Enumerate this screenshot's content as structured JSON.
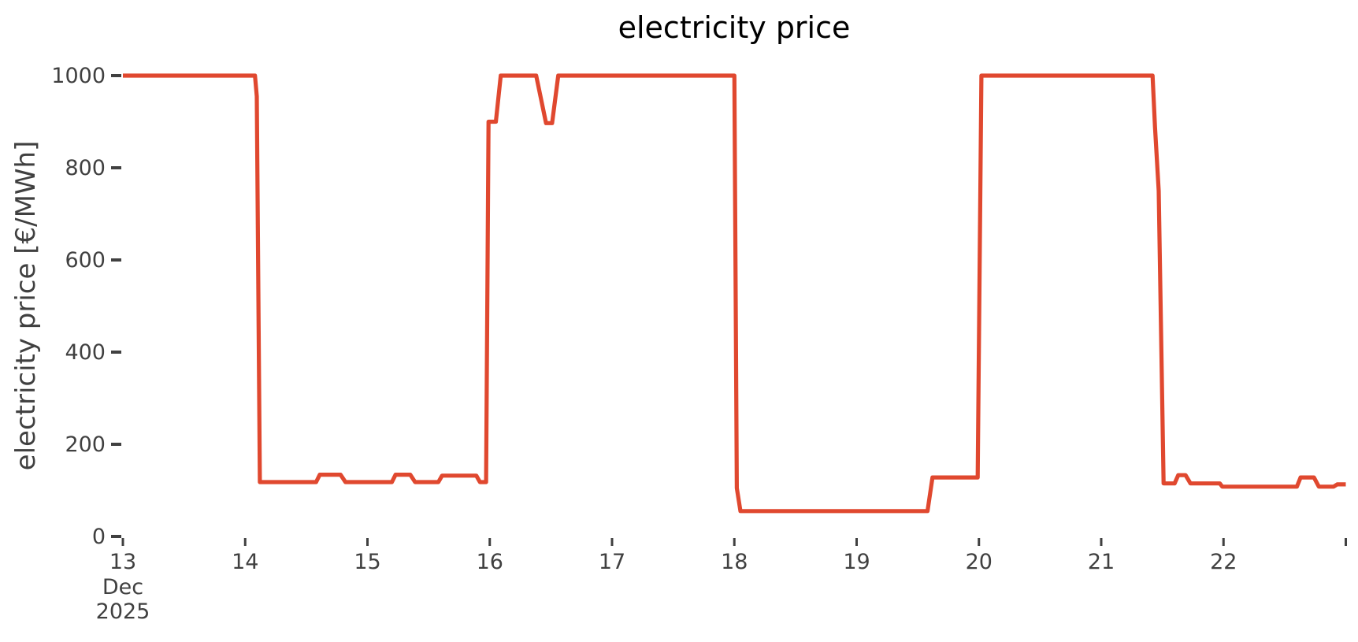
{
  "chart_data": {
    "type": "line",
    "title": "electricity price",
    "xlabel": "",
    "ylabel": "electricity price [€/MWh]",
    "grid": false,
    "legend": null,
    "background_color": "#ffffff",
    "line_color": "#e0482f",
    "axis_text_color": "#404040",
    "title_color": "#000000",
    "line_width": 5.2,
    "ylim": [
      0,
      1000
    ],
    "xlim": [
      13,
      23.1
    ],
    "yticks": [
      {
        "value": 0,
        "label": "0"
      },
      {
        "value": 200,
        "label": "200"
      },
      {
        "value": 400,
        "label": "400"
      },
      {
        "value": 600,
        "label": "600"
      },
      {
        "value": 800,
        "label": "800"
      },
      {
        "value": 1000,
        "label": "1000"
      }
    ],
    "xticks": [
      {
        "value": 13,
        "label": "13",
        "sublabels": [
          "Dec",
          "2025"
        ]
      },
      {
        "value": 14,
        "label": "14",
        "sublabels": []
      },
      {
        "value": 15,
        "label": "15",
        "sublabels": []
      },
      {
        "value": 16,
        "label": "16",
        "sublabels": []
      },
      {
        "value": 17,
        "label": "17",
        "sublabels": []
      },
      {
        "value": 18,
        "label": "18",
        "sublabels": []
      },
      {
        "value": 19,
        "label": "19",
        "sublabels": []
      },
      {
        "value": 20,
        "label": "20",
        "sublabels": []
      },
      {
        "value": 21,
        "label": "21",
        "sublabels": []
      },
      {
        "value": 22,
        "label": "22",
        "sublabels": []
      },
      {
        "value": 23,
        "label": "",
        "sublabels": []
      }
    ],
    "series": [
      {
        "name": "electricity price",
        "x_unit": "day of Dec 2025",
        "y_unit": "€/MWh",
        "points": [
          [
            13.0,
            1000
          ],
          [
            14.08,
            1000
          ],
          [
            14.095,
            955
          ],
          [
            14.12,
            118
          ],
          [
            14.58,
            118
          ],
          [
            14.61,
            134
          ],
          [
            14.78,
            134
          ],
          [
            14.82,
            118
          ],
          [
            15.2,
            118
          ],
          [
            15.23,
            134
          ],
          [
            15.35,
            134
          ],
          [
            15.39,
            118
          ],
          [
            15.58,
            118
          ],
          [
            15.61,
            132
          ],
          [
            15.89,
            132
          ],
          [
            15.92,
            118
          ],
          [
            15.97,
            118
          ],
          [
            15.99,
            900
          ],
          [
            16.05,
            900
          ],
          [
            16.09,
            1000
          ],
          [
            16.38,
            1000
          ],
          [
            16.46,
            897
          ],
          [
            16.51,
            897
          ],
          [
            16.56,
            1000
          ],
          [
            18.0,
            1000
          ],
          [
            18.02,
            105
          ],
          [
            18.05,
            55
          ],
          [
            19.58,
            55
          ],
          [
            19.62,
            128
          ],
          [
            19.99,
            128
          ],
          [
            20.02,
            1000
          ],
          [
            21.42,
            1000
          ],
          [
            21.44,
            888
          ],
          [
            21.47,
            750
          ],
          [
            21.51,
            115
          ],
          [
            21.6,
            115
          ],
          [
            21.63,
            133
          ],
          [
            21.69,
            133
          ],
          [
            21.73,
            115
          ],
          [
            21.97,
            115
          ],
          [
            21.99,
            108
          ],
          [
            22.6,
            108
          ],
          [
            22.63,
            128
          ],
          [
            22.74,
            128
          ],
          [
            22.78,
            108
          ],
          [
            22.9,
            108
          ],
          [
            22.93,
            113
          ],
          [
            23.0,
            113
          ]
        ]
      }
    ]
  }
}
